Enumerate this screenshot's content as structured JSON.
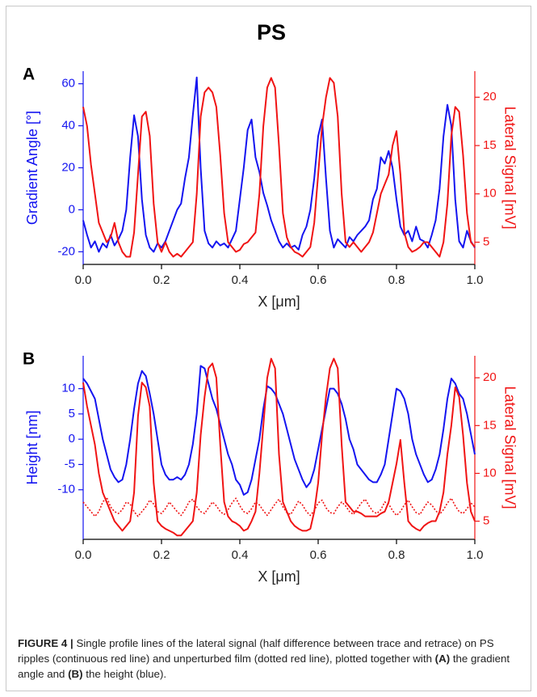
{
  "title": "PS",
  "chart_data": [
    {
      "type": "line",
      "panel": "A",
      "xlabel": "X [μm]",
      "ylabel": "Gradient Angle [°]",
      "y2label": "Lateral Signal [mV]",
      "x": [
        0,
        0.01,
        0.02,
        0.03,
        0.04,
        0.05,
        0.06,
        0.07,
        0.08,
        0.09,
        0.1,
        0.11,
        0.12,
        0.13,
        0.14,
        0.15,
        0.16,
        0.17,
        0.18,
        0.19,
        0.2,
        0.21,
        0.22,
        0.23,
        0.24,
        0.25,
        0.26,
        0.27,
        0.28,
        0.29,
        0.3,
        0.31,
        0.32,
        0.33,
        0.34,
        0.35,
        0.36,
        0.37,
        0.38,
        0.39,
        0.4,
        0.41,
        0.42,
        0.43,
        0.44,
        0.45,
        0.46,
        0.47,
        0.48,
        0.49,
        0.5,
        0.51,
        0.52,
        0.53,
        0.54,
        0.55,
        0.56,
        0.57,
        0.58,
        0.59,
        0.6,
        0.61,
        0.62,
        0.63,
        0.64,
        0.65,
        0.66,
        0.67,
        0.68,
        0.69,
        0.7,
        0.71,
        0.72,
        0.73,
        0.74,
        0.75,
        0.76,
        0.77,
        0.78,
        0.79,
        0.8,
        0.81,
        0.82,
        0.83,
        0.84,
        0.85,
        0.86,
        0.87,
        0.88,
        0.89,
        0.9,
        0.91,
        0.92,
        0.93,
        0.94,
        0.95,
        0.96,
        0.97,
        0.98,
        0.99,
        1
      ],
      "series": [
        {
          "color": "#1414f0",
          "axis": "y",
          "linestyle": "solid",
          "values": [
            -5,
            -12,
            -18,
            -15,
            -20,
            -16,
            -18,
            -12,
            -17,
            -14,
            -10,
            0,
            25,
            45,
            35,
            5,
            -12,
            -18,
            -20,
            -16,
            -18,
            -15,
            -10,
            -5,
            0,
            3,
            15,
            25,
            45,
            63,
            20,
            -10,
            -16,
            -18,
            -15,
            -17,
            -16,
            -18,
            -14,
            -10,
            5,
            20,
            38,
            43,
            25,
            18,
            8,
            2,
            -5,
            -10,
            -15,
            -18,
            -16,
            -18,
            -17,
            -19,
            -12,
            -8,
            0,
            15,
            35,
            43,
            15,
            -10,
            -18,
            -14,
            -16,
            -18,
            -13,
            -15,
            -12,
            -10,
            -8,
            -5,
            5,
            10,
            25,
            22,
            28,
            20,
            5,
            -8,
            -12,
            -10,
            -15,
            -8,
            -14,
            -15,
            -18,
            -12,
            -5,
            10,
            35,
            50,
            40,
            5,
            -15,
            -18,
            -10,
            -15,
            -18
          ]
        },
        {
          "color": "#f01414",
          "axis": "y2",
          "linestyle": "solid",
          "values": [
            19,
            17,
            13,
            10,
            7,
            6,
            5,
            5.5,
            7,
            5,
            4,
            3.5,
            3.5,
            6,
            12,
            18,
            18.5,
            16,
            9,
            5,
            4,
            5,
            4,
            3.5,
            3.8,
            3.5,
            4,
            4.5,
            5,
            10,
            18,
            20.5,
            21,
            20.5,
            19,
            14,
            8,
            5,
            4.5,
            4,
            4.2,
            4.8,
            5,
            5.5,
            6,
            10,
            17,
            21,
            22,
            21,
            15,
            8,
            5.5,
            4.5,
            4,
            3.8,
            3.5,
            4,
            4.5,
            7,
            12,
            17,
            20,
            22,
            21.5,
            18,
            10,
            5,
            4.5,
            5,
            4.5,
            4,
            4.5,
            5,
            6,
            8,
            10,
            11,
            12,
            15,
            16.5,
            12,
            6,
            4.5,
            4,
            4.2,
            4.5,
            5,
            5,
            4.5,
            4,
            3.5,
            5,
            9,
            16,
            19,
            18.5,
            14,
            8,
            5,
            4.5
          ]
        }
      ],
      "xlim": [
        0,
        1
      ],
      "xticks": [
        {
          "value": 0,
          "label": "0.0"
        },
        0.2,
        0.4,
        0.6,
        0.8,
        {
          "value": 1,
          "label": "1.0"
        }
      ],
      "ylim": [
        -26,
        66
      ],
      "yticks": [
        -20,
        0,
        20,
        40,
        60
      ],
      "y2lim": [
        2.7,
        22.7
      ],
      "y2ticks": [
        5,
        10,
        15,
        20
      ]
    },
    {
      "type": "line",
      "panel": "B",
      "xlabel": "X [μm]",
      "ylabel": "Height [nm]",
      "y2label": "Lateral Signal [mV]",
      "x": [
        0,
        0.01,
        0.02,
        0.03,
        0.04,
        0.05,
        0.06,
        0.07,
        0.08,
        0.09,
        0.1,
        0.11,
        0.12,
        0.13,
        0.14,
        0.15,
        0.16,
        0.17,
        0.18,
        0.19,
        0.2,
        0.21,
        0.22,
        0.23,
        0.24,
        0.25,
        0.26,
        0.27,
        0.28,
        0.29,
        0.3,
        0.31,
        0.32,
        0.33,
        0.34,
        0.35,
        0.36,
        0.37,
        0.38,
        0.39,
        0.4,
        0.41,
        0.42,
        0.43,
        0.44,
        0.45,
        0.46,
        0.47,
        0.48,
        0.49,
        0.5,
        0.51,
        0.52,
        0.53,
        0.54,
        0.55,
        0.56,
        0.57,
        0.58,
        0.59,
        0.6,
        0.61,
        0.62,
        0.63,
        0.64,
        0.65,
        0.66,
        0.67,
        0.68,
        0.69,
        0.7,
        0.71,
        0.72,
        0.73,
        0.74,
        0.75,
        0.76,
        0.77,
        0.78,
        0.79,
        0.8,
        0.81,
        0.82,
        0.83,
        0.84,
        0.85,
        0.86,
        0.87,
        0.88,
        0.89,
        0.9,
        0.91,
        0.92,
        0.93,
        0.94,
        0.95,
        0.96,
        0.97,
        0.98,
        0.99,
        1
      ],
      "series": [
        {
          "color": "#1414f0",
          "axis": "y",
          "linestyle": "solid",
          "values": [
            12,
            11,
            9.5,
            8,
            4,
            0,
            -3,
            -6,
            -7.5,
            -8.5,
            -8,
            -5,
            0,
            6,
            11,
            13.5,
            12.5,
            9,
            5,
            0,
            -5,
            -7,
            -8,
            -8,
            -7.5,
            -8,
            -7,
            -5,
            -1,
            5,
            14.5,
            14,
            11,
            8,
            6,
            3,
            0,
            -3,
            -5,
            -8,
            -9,
            -11,
            -10.5,
            -8,
            -4,
            0,
            6,
            10.5,
            10,
            9,
            7,
            5,
            2,
            -1,
            -4,
            -6,
            -8,
            -9.5,
            -8.5,
            -6,
            -2,
            2,
            6,
            10,
            10,
            9,
            7,
            4,
            0,
            -2,
            -5,
            -6,
            -7,
            -8,
            -8.5,
            -8.5,
            -7,
            -5,
            0,
            5,
            10,
            9.5,
            8,
            5,
            0,
            -3,
            -5,
            -7,
            -8.5,
            -8,
            -6,
            -3,
            2,
            8,
            12,
            11,
            9,
            8,
            5,
            1,
            -3
          ]
        },
        {
          "color": "#f01414",
          "axis": "y2",
          "linestyle": "solid",
          "values": [
            19.5,
            17,
            15,
            13,
            10,
            8,
            7,
            6,
            5,
            4.5,
            4,
            4.5,
            5,
            8,
            16,
            19.5,
            19,
            17,
            9,
            5,
            4.5,
            4.2,
            4,
            3.8,
            3.5,
            3.5,
            4,
            4.5,
            5,
            8,
            14,
            18,
            21,
            21.5,
            20,
            13,
            7,
            5.5,
            5,
            4.8,
            4.5,
            4,
            4.2,
            5,
            6,
            10,
            15,
            20,
            22,
            21,
            12,
            7,
            6,
            5,
            4.5,
            4.2,
            4,
            4,
            4.2,
            6,
            9,
            14,
            18,
            21,
            22,
            21,
            13,
            7,
            6.5,
            6,
            6,
            5.8,
            5.5,
            5.5,
            5.5,
            5.5,
            5.8,
            6,
            7,
            9,
            11,
            13.5,
            9,
            5,
            4.5,
            4.2,
            4,
            4.5,
            4.8,
            5,
            5,
            6,
            8,
            12,
            15,
            19,
            18,
            14,
            9,
            6,
            5
          ]
        },
        {
          "color": "#f01414",
          "axis": "y2",
          "linestyle": "dotted",
          "values": [
            7,
            6.5,
            6,
            5.5,
            6,
            7,
            7.5,
            6.5,
            6,
            5.8,
            6.2,
            7,
            6.8,
            6,
            5.5,
            6,
            6.5,
            7.2,
            6.8,
            6,
            5.8,
            6.3,
            7,
            6.5,
            6,
            5.6,
            6.2,
            7,
            7.3,
            6.5,
            6,
            5.8,
            6.4,
            7,
            6.6,
            6,
            5.7,
            6.2,
            6.9,
            7.4,
            6.6,
            6,
            5.8,
            6.3,
            7,
            6.7,
            6.1,
            5.6,
            6.2,
            6.8,
            7.3,
            6.5,
            5.9,
            5.7,
            6.4,
            7.1,
            6.7,
            6,
            5.6,
            6.1,
            6.9,
            7.2,
            6.4,
            5.9,
            5.8,
            6.5,
            7,
            6.6,
            6,
            5.7,
            6.3,
            6.9,
            7.3,
            6.6,
            6,
            5.8,
            6.2,
            7,
            6.8,
            6.1,
            5.6,
            6,
            6.7,
            7.2,
            6.5,
            5.9,
            5.7,
            6.4,
            7,
            6.7,
            6.1,
            5.7,
            6.2,
            6.9,
            7.4,
            6.6,
            6,
            5.8,
            6.3,
            6.9,
            6.5
          ]
        }
      ],
      "xlim": [
        0,
        1
      ],
      "xticks": [
        {
          "value": 0,
          "label": "0.0"
        },
        0.2,
        0.4,
        0.6,
        0.8,
        {
          "value": 1,
          "label": "1.0"
        }
      ],
      "ylim": [
        -19.8,
        16.5
      ],
      "yticks": [
        -10,
        -5,
        0,
        5,
        10
      ],
      "y2lim": [
        3.1,
        22.3
      ],
      "y2ticks": [
        5,
        10,
        15,
        20
      ]
    }
  ],
  "caption": {
    "label": "FIGURE 4 |",
    "parts": [
      "Single profile lines of the lateral signal (half difference between trace and retrace) on PS ripples (continuous red line) and unperturbed film (dotted red line), plotted together with ",
      "(A)",
      " the gradient angle and ",
      "(B)",
      " the height (blue)."
    ]
  }
}
